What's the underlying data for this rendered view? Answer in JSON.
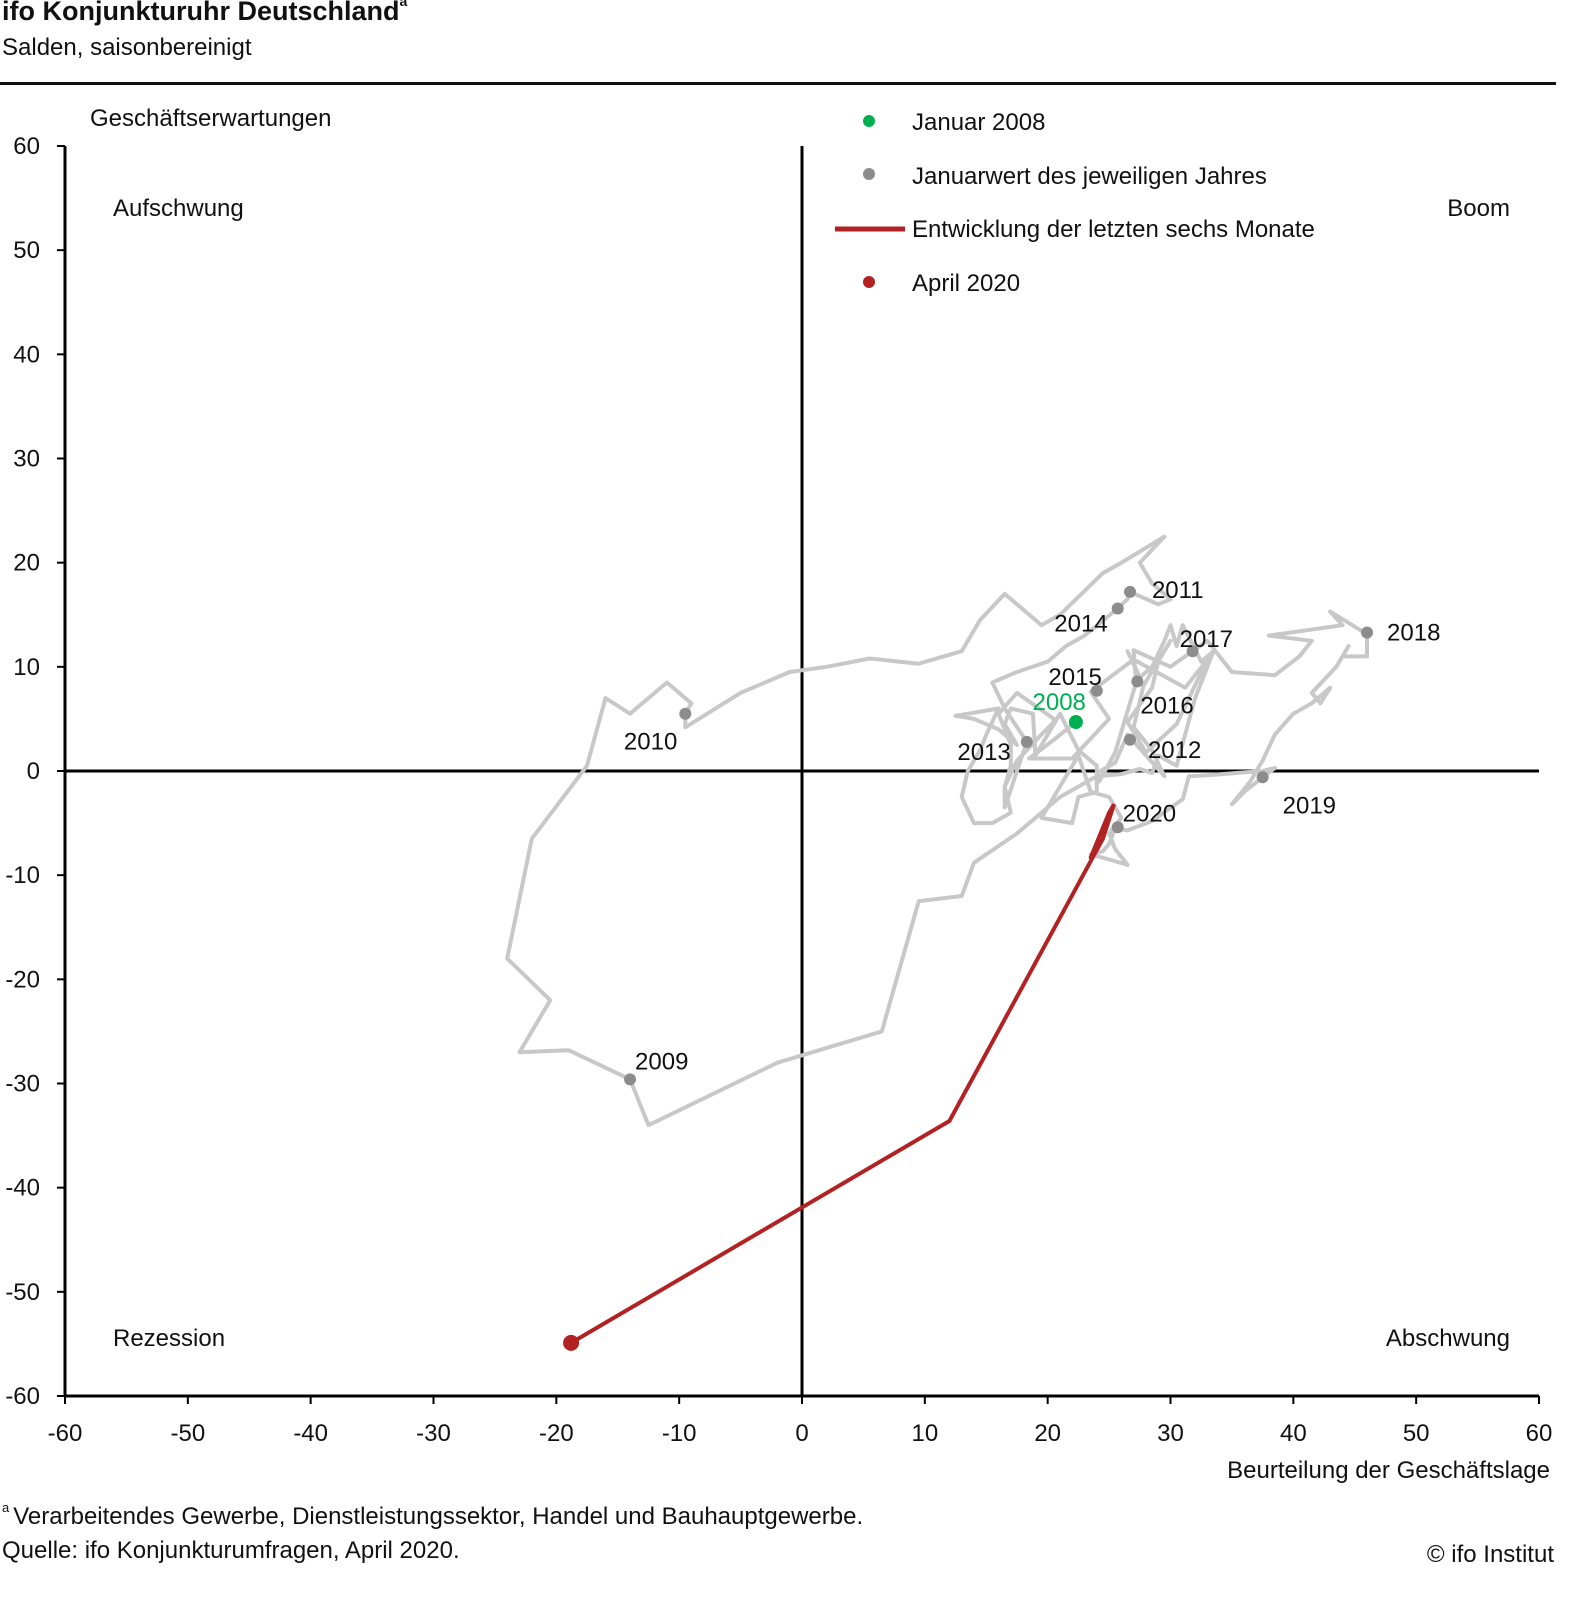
{
  "header": {
    "title": "ifo Konjunkturuhr  Deutschland",
    "title_sup": "a",
    "subtitle": "Salden, saisonbereinigt"
  },
  "footer": {
    "footnote_mark": "a",
    "footnote": "Verarbeitendes Gewerbe, Dienstleistungssektor, Handel und Bauhauptgewerbe.",
    "source": "Quelle: ifo Konjunkturumfragen, April 2020.",
    "copyright": "© ifo Institut"
  },
  "colors": {
    "history_line": "#c8c8c8",
    "year_dot": "#8c8c8c",
    "start_dot": "#00b050",
    "recent_line": "#b22222",
    "axis": "#000000"
  },
  "chart_data": {
    "type": "scatter",
    "title": "ifo Konjunkturuhr  Deutschland",
    "subtitle": "Salden, saisonbereinigt",
    "xlabel": "Beurteilung der Geschäftslage",
    "ylabel": "Geschäftserwartungen",
    "xlim": [
      -60,
      60
    ],
    "ylim": [
      -60,
      60
    ],
    "xticks": [
      -60,
      -50,
      -40,
      -30,
      -20,
      -10,
      0,
      10,
      20,
      30,
      40,
      50,
      60
    ],
    "yticks": [
      -60,
      -50,
      -40,
      -30,
      -20,
      -10,
      0,
      10,
      20,
      30,
      40,
      50,
      60
    ],
    "grid": false,
    "quadrants": {
      "top_left": "Aufschwung",
      "top_right": "Boom",
      "bottom_left": "Rezession",
      "bottom_right": "Abschwung"
    },
    "legend": [
      {
        "label": "Januar 2008",
        "marker": "start-dot"
      },
      {
        "label": "Januarwert des jeweiligen Jahres",
        "marker": "year-dot"
      },
      {
        "label": "Entwicklung der letzten sechs Monate",
        "marker": "recent-line"
      },
      {
        "label": "April 2020",
        "marker": "end-dot"
      }
    ],
    "legend_position": "top-center",
    "history_path": [
      [
        22.3,
        4.7
      ],
      [
        20.5,
        3.0
      ],
      [
        18.5,
        1.2
      ],
      [
        22.0,
        1.2
      ],
      [
        25.0,
        5.0
      ],
      [
        23.5,
        7.6
      ],
      [
        27.0,
        10.7
      ],
      [
        31.2,
        8.0
      ],
      [
        33.0,
        10.7
      ],
      [
        30.5,
        4.5
      ],
      [
        28.0,
        1.8
      ],
      [
        26.5,
        4.7
      ],
      [
        28.5,
        8.0
      ],
      [
        29.0,
        10.5
      ],
      [
        30.0,
        12.5
      ],
      [
        27.8,
        8.2
      ],
      [
        27.0,
        4.2
      ],
      [
        28.5,
        2.0
      ],
      [
        29.5,
        -0.5
      ],
      [
        26.5,
        3.5
      ],
      [
        25.5,
        0.8
      ],
      [
        24.0,
        -0.2
      ],
      [
        24.2,
        -1.0
      ],
      [
        25.5,
        1.8
      ],
      [
        27.2,
        8.5
      ],
      [
        27.0,
        11.6
      ],
      [
        30.0,
        10.0
      ],
      [
        33.0,
        12.5
      ],
      [
        35.0,
        9.5
      ],
      [
        38.5,
        9.2
      ],
      [
        40.5,
        11.0
      ],
      [
        41.5,
        12.5
      ],
      [
        38.0,
        13.0
      ],
      [
        44.0,
        14.0
      ],
      [
        43.0,
        15.3
      ],
      [
        45.5,
        13.5
      ],
      [
        46.0,
        13.3
      ],
      [
        46.0,
        11.0
      ],
      [
        44.0,
        11.0
      ],
      [
        44.5,
        12.0
      ],
      [
        43.5,
        10.0
      ],
      [
        41.5,
        7.5
      ],
      [
        42.2,
        6.5
      ],
      [
        43.0,
        8.0
      ],
      [
        41.5,
        6.5
      ],
      [
        40.0,
        5.5
      ],
      [
        38.5,
        3.5
      ],
      [
        37.5,
        1.0
      ],
      [
        36.5,
        -1.0
      ],
      [
        35.0,
        -3.2
      ],
      [
        36.0,
        -2.0
      ],
      [
        38.5,
        0.3
      ],
      [
        37.5,
        0.0
      ],
      [
        33.0,
        -0.4
      ],
      [
        31.5,
        -0.5
      ],
      [
        31.0,
        -2.7
      ],
      [
        28.5,
        -4.8
      ],
      [
        26.5,
        -5.7
      ],
      [
        25.5,
        -5.5
      ],
      [
        25.0,
        -7.0
      ],
      [
        24.5,
        -7.7
      ],
      [
        23.5,
        -8.0
      ],
      [
        25.0,
        -8.5
      ],
      [
        26.5,
        -9.0
      ],
      [
        25.5,
        -7.5
      ],
      [
        25.0,
        -6.0
      ],
      [
        26.0,
        -4.5
      ],
      [
        25.0,
        -2.5
      ],
      [
        23.5,
        -2.0
      ],
      [
        22.5,
        1.5
      ],
      [
        20.5,
        -2.5
      ],
      [
        19.5,
        -4.5
      ],
      [
        22.0,
        -5.0
      ],
      [
        22.5,
        -2.5
      ],
      [
        24.0,
        -2.0
      ],
      [
        24.0,
        0.5
      ],
      [
        22.5,
        2.0
      ],
      [
        21.0,
        5.5
      ],
      [
        20.0,
        3.5
      ],
      [
        19.0,
        1.5
      ],
      [
        18.8,
        5.5
      ],
      [
        17.0,
        6.0
      ],
      [
        16.5,
        4.5
      ],
      [
        17.5,
        2.5
      ],
      [
        16.0,
        4.0
      ],
      [
        14.0,
        5.0
      ],
      [
        12.5,
        5.3
      ],
      [
        16.0,
        6.0
      ],
      [
        15.0,
        3.5
      ],
      [
        14.5,
        2.0
      ],
      [
        13.5,
        0.0
      ],
      [
        13.0,
        -2.5
      ],
      [
        14.0,
        -5.0
      ],
      [
        15.5,
        -5.0
      ],
      [
        17.0,
        -4.0
      ],
      [
        16.5,
        -1.5
      ],
      [
        17.5,
        1.0
      ],
      [
        19.5,
        3.5
      ],
      [
        20.5,
        4.7
      ],
      [
        20.5,
        5.0
      ],
      [
        17.5,
        7.5
      ],
      [
        16.0,
        5.5
      ],
      [
        17.0,
        2.5
      ],
      [
        17.0,
        0.5
      ],
      [
        16.5,
        -1.5
      ],
      [
        16.5,
        -3.5
      ],
      [
        18.3,
        2.8
      ],
      [
        16.5,
        6.0
      ],
      [
        15.5,
        8.5
      ],
      [
        17.5,
        9.5
      ],
      [
        20.0,
        10.5
      ],
      [
        21.5,
        12.0
      ],
      [
        23.0,
        13.0
      ],
      [
        25.7,
        15.6
      ],
      [
        26.5,
        16.5
      ],
      [
        26.7,
        17.2
      ],
      [
        29.0,
        16.0
      ],
      [
        30.0,
        16.5
      ],
      [
        28.5,
        18.0
      ],
      [
        27.5,
        20.0
      ],
      [
        29.5,
        22.5
      ],
      [
        26.0,
        20.0
      ],
      [
        24.5,
        19.0
      ],
      [
        21.0,
        15.0
      ],
      [
        19.5,
        14.0
      ],
      [
        18.0,
        15.5
      ],
      [
        16.5,
        17.0
      ],
      [
        14.5,
        14.5
      ],
      [
        13.0,
        11.5
      ],
      [
        9.5,
        10.3
      ],
      [
        5.5,
        10.8
      ],
      [
        2.0,
        10.0
      ],
      [
        -1.0,
        9.5
      ],
      [
        -5.0,
        7.5
      ],
      [
        -9.5,
        4.2
      ],
      [
        -9.5,
        5.5
      ],
      [
        -9.0,
        6.5
      ],
      [
        -11.0,
        8.5
      ],
      [
        -14.0,
        5.5
      ],
      [
        -16.0,
        7.0
      ],
      [
        -17.5,
        0.5
      ],
      [
        -22.0,
        -6.5
      ],
      [
        -24.0,
        -18.0
      ],
      [
        -20.5,
        -22.0
      ],
      [
        -23.0,
        -27.0
      ],
      [
        -19.0,
        -26.8
      ],
      [
        -14.0,
        -29.6
      ],
      [
        -12.5,
        -34.0
      ],
      [
        -2.0,
        -28.0
      ],
      [
        6.5,
        -25.0
      ],
      [
        9.5,
        -12.5
      ],
      [
        13.0,
        -12.0
      ],
      [
        14.0,
        -8.8
      ],
      [
        17.5,
        -6.0
      ],
      [
        21.0,
        -2.5
      ],
      [
        24.0,
        -0.5
      ],
      [
        26.0,
        -0.3
      ],
      [
        27.5,
        0.2
      ],
      [
        28.5,
        -0.2
      ],
      [
        29.0,
        1.5
      ],
      [
        30.5,
        0.5
      ],
      [
        32.0,
        7.0
      ],
      [
        33.5,
        11.5
      ],
      [
        32.5,
        10.5
      ],
      [
        31.0,
        14.0
      ],
      [
        30.5,
        12.0
      ],
      [
        30.0,
        14.0
      ],
      [
        29.5,
        12.5
      ],
      [
        28.5,
        10.0
      ],
      [
        27.5,
        9.0
      ],
      [
        26.5,
        11.5
      ]
    ],
    "start_point": {
      "label": "2008",
      "x": 22.3,
      "y": 4.7
    },
    "january_points": [
      {
        "label": "2009",
        "x": -14.0,
        "y": -29.6
      },
      {
        "label": "2010",
        "x": -9.5,
        "y": 5.5
      },
      {
        "label": "2011",
        "x": 26.7,
        "y": 17.2
      },
      {
        "label": "2012",
        "x": 26.7,
        "y": 3.0
      },
      {
        "label": "2013",
        "x": 18.3,
        "y": 2.8
      },
      {
        "label": "2014",
        "x": 25.7,
        "y": 15.6
      },
      {
        "label": "2015",
        "x": 24.0,
        "y": 7.7
      },
      {
        "label": "2016",
        "x": 27.3,
        "y": 8.6
      },
      {
        "label": "2017",
        "x": 31.8,
        "y": 11.5
      },
      {
        "label": "2018",
        "x": 46.0,
        "y": 13.3
      },
      {
        "label": "2019",
        "x": 37.5,
        "y": -0.6
      },
      {
        "label": "2020",
        "x": 25.7,
        "y": -5.4
      }
    ],
    "recent_path": [
      [
        23.5,
        -8.3
      ],
      [
        25.0,
        -4.0
      ],
      [
        25.4,
        -3.2
      ],
      [
        24.5,
        -6.5
      ],
      [
        12.0,
        -33.6
      ],
      [
        -18.8,
        -54.9
      ]
    ],
    "end_point": {
      "label": "April 2020",
      "x": -18.8,
      "y": -54.9
    }
  }
}
